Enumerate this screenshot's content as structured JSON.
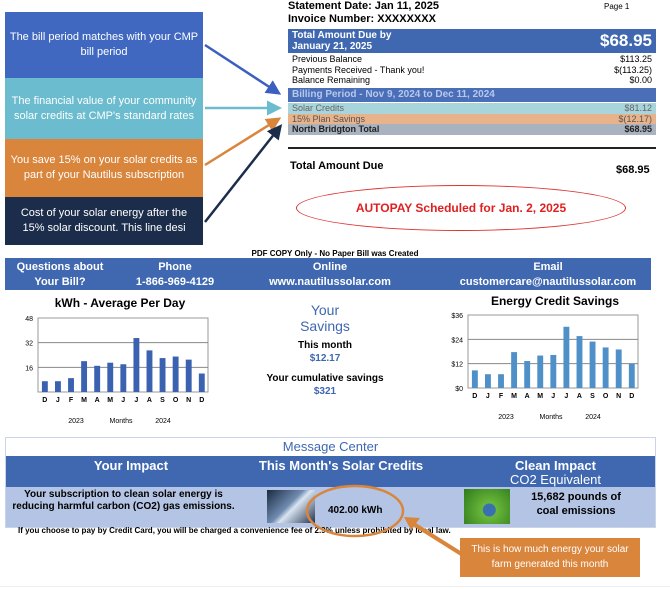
{
  "callouts": [
    {
      "text": "The bill period matches with your CMP bill period",
      "color": "#4068c0"
    },
    {
      "text": "The financial value of your community solar credits at CMP's standard rates",
      "color": "#6bbccf"
    },
    {
      "text": "You save 15% on your solar credits as part of your Nautilus subscription",
      "color": "#d9853b"
    },
    {
      "text": "Cost of your solar energy after the 15% solar discount. This line desi",
      "color": "#1b2d4a"
    }
  ],
  "statement": {
    "date": "Statement Date: Jan 11, 2025",
    "invoice": "Invoice Number: XXXXXXXX",
    "page": "Page 1"
  },
  "due_box": {
    "label_line1": "Total Amount Due by",
    "label_line2": "January 21, 2025",
    "amount": "$68.95"
  },
  "balance_rows": [
    {
      "label": "Previous Balance",
      "value": "$113.25"
    },
    {
      "label": "Payments Received - Thank you!",
      "value": "$(113.25)"
    },
    {
      "label": "Balance Remaining",
      "value": "$0.00"
    }
  ],
  "billing_period": "Billing Period - Nov 9, 2024 to Dec 11, 2024",
  "billing_rows": [
    {
      "label": "Solar Credits",
      "value": "$81.12"
    },
    {
      "label": "15% Plan Savings",
      "value": "$(12.17)"
    },
    {
      "label": "North Bridgton Total",
      "value": "$68.95"
    }
  ],
  "total_due": {
    "label": "Total Amount Due",
    "amount": "$68.95"
  },
  "autopay": "AUTOPAY Scheduled for Jan. 2, 2025",
  "pdf_note": "PDF COPY Only - No Paper Bill was Created",
  "contact": {
    "q1": "Questions about",
    "q2": "Your Bill?",
    "phone_label": "Phone",
    "phone": "1-866-969-4129",
    "online_label": "Online",
    "online": "www.nautilussolar.com",
    "email_label": "Email",
    "email": "customercare@nautilussolar.com"
  },
  "savings": {
    "title1": "Your",
    "title2": "Savings",
    "month_label": "This month",
    "month_value": "$12.17",
    "cum_label": "Your cumulative savings",
    "cum_value": "$321"
  },
  "chart_data": [
    {
      "type": "bar",
      "title": "kWh - Average Per Day",
      "categories": [
        "D",
        "J",
        "F",
        "M",
        "A",
        "M",
        "J",
        "J",
        "A",
        "S",
        "O",
        "N",
        "D"
      ],
      "values": [
        7,
        7,
        9,
        20,
        17,
        19,
        18,
        35,
        27,
        22,
        23,
        21,
        12
      ],
      "yticks": [
        "16",
        "32",
        "48"
      ],
      "ylim": [
        0,
        48
      ],
      "xlabel_parts": [
        "2023",
        "Months",
        "2024"
      ],
      "color": "#3a62b0",
      "grid": true
    },
    {
      "type": "bar",
      "title": "Energy Credit Savings",
      "categories": [
        "D",
        "J",
        "F",
        "M",
        "A",
        "M",
        "J",
        "J",
        "A",
        "S",
        "O",
        "N",
        "D"
      ],
      "values": [
        8.7,
        6.8,
        6.8,
        17.7,
        13.3,
        16,
        16.3,
        30.2,
        25.6,
        22.9,
        20,
        19,
        12
      ],
      "yticks": [
        "$0",
        "$12",
        "$24",
        "$36"
      ],
      "ylim": [
        0,
        36
      ],
      "xlabel_parts": [
        "2023",
        "Months",
        "2024"
      ],
      "color": "#4f90c8",
      "grid": true
    }
  ],
  "message_center": {
    "title": "Message Center",
    "col1": "Your Impact",
    "col2": "This Month's Solar Credits",
    "col3a": "Clean Impact",
    "col3b": "CO2 Equivalent",
    "impact_text": "Your subscription to clean solar energy is reducing harmful carbon (CO2) gas emissions.",
    "kwh": "402.00 kWh",
    "coal": "15,682  pounds of coal emissions"
  },
  "fee_note": "If you choose to pay by Credit Card, you will be charged a convenience fee of 2.9% unless prohibited by local law.",
  "energy_callout": "This is how much energy your solar farm generated this month"
}
